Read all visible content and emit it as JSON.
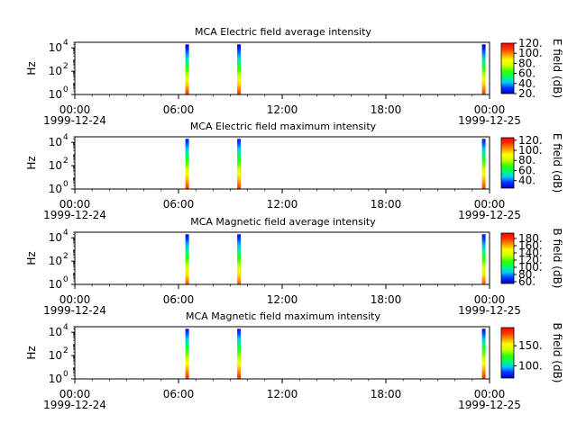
{
  "figure": {
    "background": "#ffffff",
    "colormap": [
      "#0000cc",
      "#0033ff",
      "#00ccff",
      "#00ff66",
      "#33ff00",
      "#ccff00",
      "#ffff00",
      "#ff9900",
      "#ff3300",
      "#ff0000"
    ]
  },
  "chart_data": [
    {
      "type": "heatmap",
      "title": "MCA  Electric field average intensity",
      "ylabel": "Hz",
      "colorbar_label": "E field (dB)",
      "colorbar_ticks": [
        "120.",
        "100.",
        "80.",
        "60.",
        "40.",
        "20."
      ],
      "colorbar_range": [
        20,
        120
      ],
      "y_scale": "log",
      "ylim": [
        1,
        30000
      ],
      "y_ticks": [
        {
          "base": "10",
          "exp": "0"
        },
        {
          "base": "10",
          "exp": "2"
        },
        {
          "base": "10",
          "exp": "4"
        }
      ],
      "x_range_hours": [
        0,
        24
      ],
      "x_ticks": [
        "00:00",
        "06:00",
        "12:00",
        "18:00",
        "00:00"
      ],
      "x_dates": [
        "1999-12-24",
        "1999-12-25"
      ],
      "bursts": [
        {
          "time": "06:30",
          "f_low": 1,
          "f_high": 20000,
          "low_value": 110,
          "high_value": 20
        },
        {
          "time": "09:30",
          "f_low": 1,
          "f_high": 20000,
          "low_value": 110,
          "high_value": 20
        },
        {
          "time": "23:40",
          "f_low": 1,
          "f_high": 20000,
          "low_value": 110,
          "high_value": 20
        }
      ]
    },
    {
      "type": "heatmap",
      "title": "MCA  Electric field maximum intensity",
      "ylabel": "Hz",
      "colorbar_label": "E field (dB)",
      "colorbar_ticks": [
        "120.",
        "100.",
        "80.",
        "60.",
        "40."
      ],
      "colorbar_range": [
        25,
        125
      ],
      "y_scale": "log",
      "ylim": [
        1,
        30000
      ],
      "y_ticks": [
        {
          "base": "10",
          "exp": "0"
        },
        {
          "base": "10",
          "exp": "2"
        },
        {
          "base": "10",
          "exp": "4"
        }
      ],
      "x_range_hours": [
        0,
        24
      ],
      "x_ticks": [
        "00:00",
        "06:00",
        "12:00",
        "18:00",
        "00:00"
      ],
      "x_dates": [
        "1999-12-24",
        "1999-12-25"
      ],
      "bursts": [
        {
          "time": "06:30",
          "f_low": 1,
          "f_high": 20000,
          "low_value": 115,
          "high_value": 30
        },
        {
          "time": "09:30",
          "f_low": 1,
          "f_high": 20000,
          "low_value": 115,
          "high_value": 30
        },
        {
          "time": "23:40",
          "f_low": 1,
          "f_high": 20000,
          "low_value": 115,
          "high_value": 30
        }
      ]
    },
    {
      "type": "heatmap",
      "title": "MCA  Magnetic field average intensity",
      "ylabel": "Hz",
      "colorbar_label": "B field (dB)",
      "colorbar_ticks": [
        "180.",
        "160.",
        "140.",
        "120.",
        "100.",
        "80.",
        "60."
      ],
      "colorbar_range": [
        55,
        195
      ],
      "y_scale": "log",
      "ylim": [
        1,
        30000
      ],
      "y_ticks": [
        {
          "base": "10",
          "exp": "0"
        },
        {
          "base": "10",
          "exp": "2"
        },
        {
          "base": "10",
          "exp": "4"
        }
      ],
      "x_range_hours": [
        0,
        24
      ],
      "x_ticks": [
        "00:00",
        "06:00",
        "12:00",
        "18:00",
        "00:00"
      ],
      "x_dates": [
        "1999-12-24",
        "1999-12-25"
      ],
      "bursts": [
        {
          "time": "06:30",
          "f_low": 1,
          "f_high": 20000,
          "low_value": 175,
          "high_value": 60
        },
        {
          "time": "09:30",
          "f_low": 1,
          "f_high": 20000,
          "low_value": 175,
          "high_value": 60
        },
        {
          "time": "23:40",
          "f_low": 1,
          "f_high": 20000,
          "low_value": 175,
          "high_value": 60
        }
      ]
    },
    {
      "type": "heatmap",
      "title": "MCA  Magnetic field maximum intensity",
      "ylabel": "Hz",
      "colorbar_label": "B field (dB)",
      "colorbar_ticks": [
        "150.",
        "100."
      ],
      "colorbar_range": [
        70,
        195
      ],
      "y_scale": "log",
      "ylim": [
        1,
        30000
      ],
      "y_ticks": [
        {
          "base": "10",
          "exp": "0"
        },
        {
          "base": "10",
          "exp": "2"
        },
        {
          "base": "10",
          "exp": "4"
        }
      ],
      "x_range_hours": [
        0,
        24
      ],
      "x_ticks": [
        "00:00",
        "06:00",
        "12:00",
        "18:00",
        "00:00"
      ],
      "x_dates": [
        "1999-12-24",
        "1999-12-25"
      ],
      "bursts": [
        {
          "time": "06:30",
          "f_low": 1,
          "f_high": 20000,
          "low_value": 185,
          "high_value": 75
        },
        {
          "time": "09:30",
          "f_low": 1,
          "f_high": 20000,
          "low_value": 185,
          "high_value": 75
        },
        {
          "time": "23:40",
          "f_low": 1,
          "f_high": 20000,
          "low_value": 185,
          "high_value": 75
        }
      ]
    }
  ]
}
